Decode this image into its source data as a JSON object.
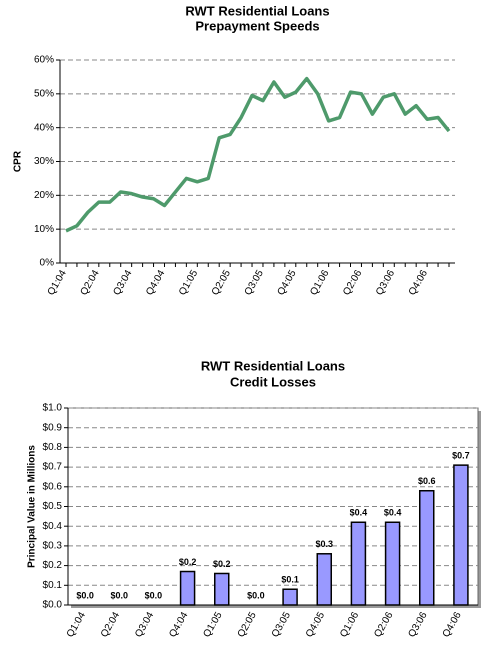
{
  "chart_data": [
    {
      "type": "line",
      "title": "RWT Residential Loans",
      "subtitle": "Prepayment Speeds",
      "y_label": "CPR",
      "categories": [
        "Q1:04",
        null,
        null,
        "Q2:04",
        null,
        null,
        "Q3:04",
        null,
        null,
        "Q4:04",
        null,
        null,
        "Q1:05",
        null,
        null,
        "Q2:05",
        null,
        null,
        "Q3:05",
        null,
        null,
        "Q4:05",
        null,
        null,
        "Q1:06",
        null,
        null,
        "Q2:06",
        null,
        null,
        "Q3:06",
        null,
        null,
        "Q4:06",
        null,
        null
      ],
      "values": [
        9.5,
        11,
        15,
        18,
        18,
        21,
        20.5,
        19.5,
        19,
        17,
        21,
        25,
        24,
        25,
        37,
        38,
        43,
        49.5,
        48,
        53.5,
        49,
        50.5,
        54.5,
        50,
        42,
        43,
        50.5,
        50,
        44,
        49,
        50,
        44,
        46.5,
        42.5,
        43,
        39
      ],
      "color": "#4e9a6b",
      "ylim": [
        0,
        60
      ],
      "yticks": [
        {
          "value": 0,
          "label": "0%"
        },
        {
          "value": 10,
          "label": "10%"
        },
        {
          "value": 20,
          "label": "20%"
        },
        {
          "value": 30,
          "label": "30%"
        },
        {
          "value": 40,
          "label": "40%"
        },
        {
          "value": 50,
          "label": "50%"
        },
        {
          "value": 60,
          "label": "60%"
        }
      ],
      "grid": true
    },
    {
      "type": "bar",
      "title": "RWT Residential Loans",
      "subtitle": "Credit Losses",
      "y_label": "Principal Value in Millions",
      "categories": [
        "Q1:04",
        "Q2:04",
        "Q3:04",
        "Q4:04",
        "Q1:05",
        "Q2:05",
        "Q3:05",
        "Q4:05",
        "Q1:06",
        "Q2:06",
        "Q3:06",
        "Q4:06"
      ],
      "values": [
        0,
        0,
        0,
        0.17,
        0.16,
        0,
        0.08,
        0.26,
        0.42,
        0.42,
        0.58,
        0.71
      ],
      "value_labels": [
        "$0.0",
        "$0.0",
        "$0.0",
        "$0.2",
        "$0.2",
        "$0.0",
        "$0.1",
        "$0.3",
        "$0.4",
        "$0.4",
        "$0.6",
        "$0.7"
      ],
      "color": "#9999ff",
      "ylim": [
        0,
        1
      ],
      "yticks": [
        {
          "value": 0,
          "label": "$0.0"
        },
        {
          "value": 0.1,
          "label": "$0.1"
        },
        {
          "value": 0.2,
          "label": "$0.2"
        },
        {
          "value": 0.3,
          "label": "$0.3"
        },
        {
          "value": 0.4,
          "label": "$0.4"
        },
        {
          "value": 0.5,
          "label": "$0.5"
        },
        {
          "value": 0.6,
          "label": "$0.6"
        },
        {
          "value": 0.7,
          "label": "$0.7"
        },
        {
          "value": 0.8,
          "label": "$0.8"
        },
        {
          "value": 0.9,
          "label": "$0.9"
        },
        {
          "value": 1,
          "label": "$1.0"
        }
      ],
      "grid": true
    }
  ]
}
